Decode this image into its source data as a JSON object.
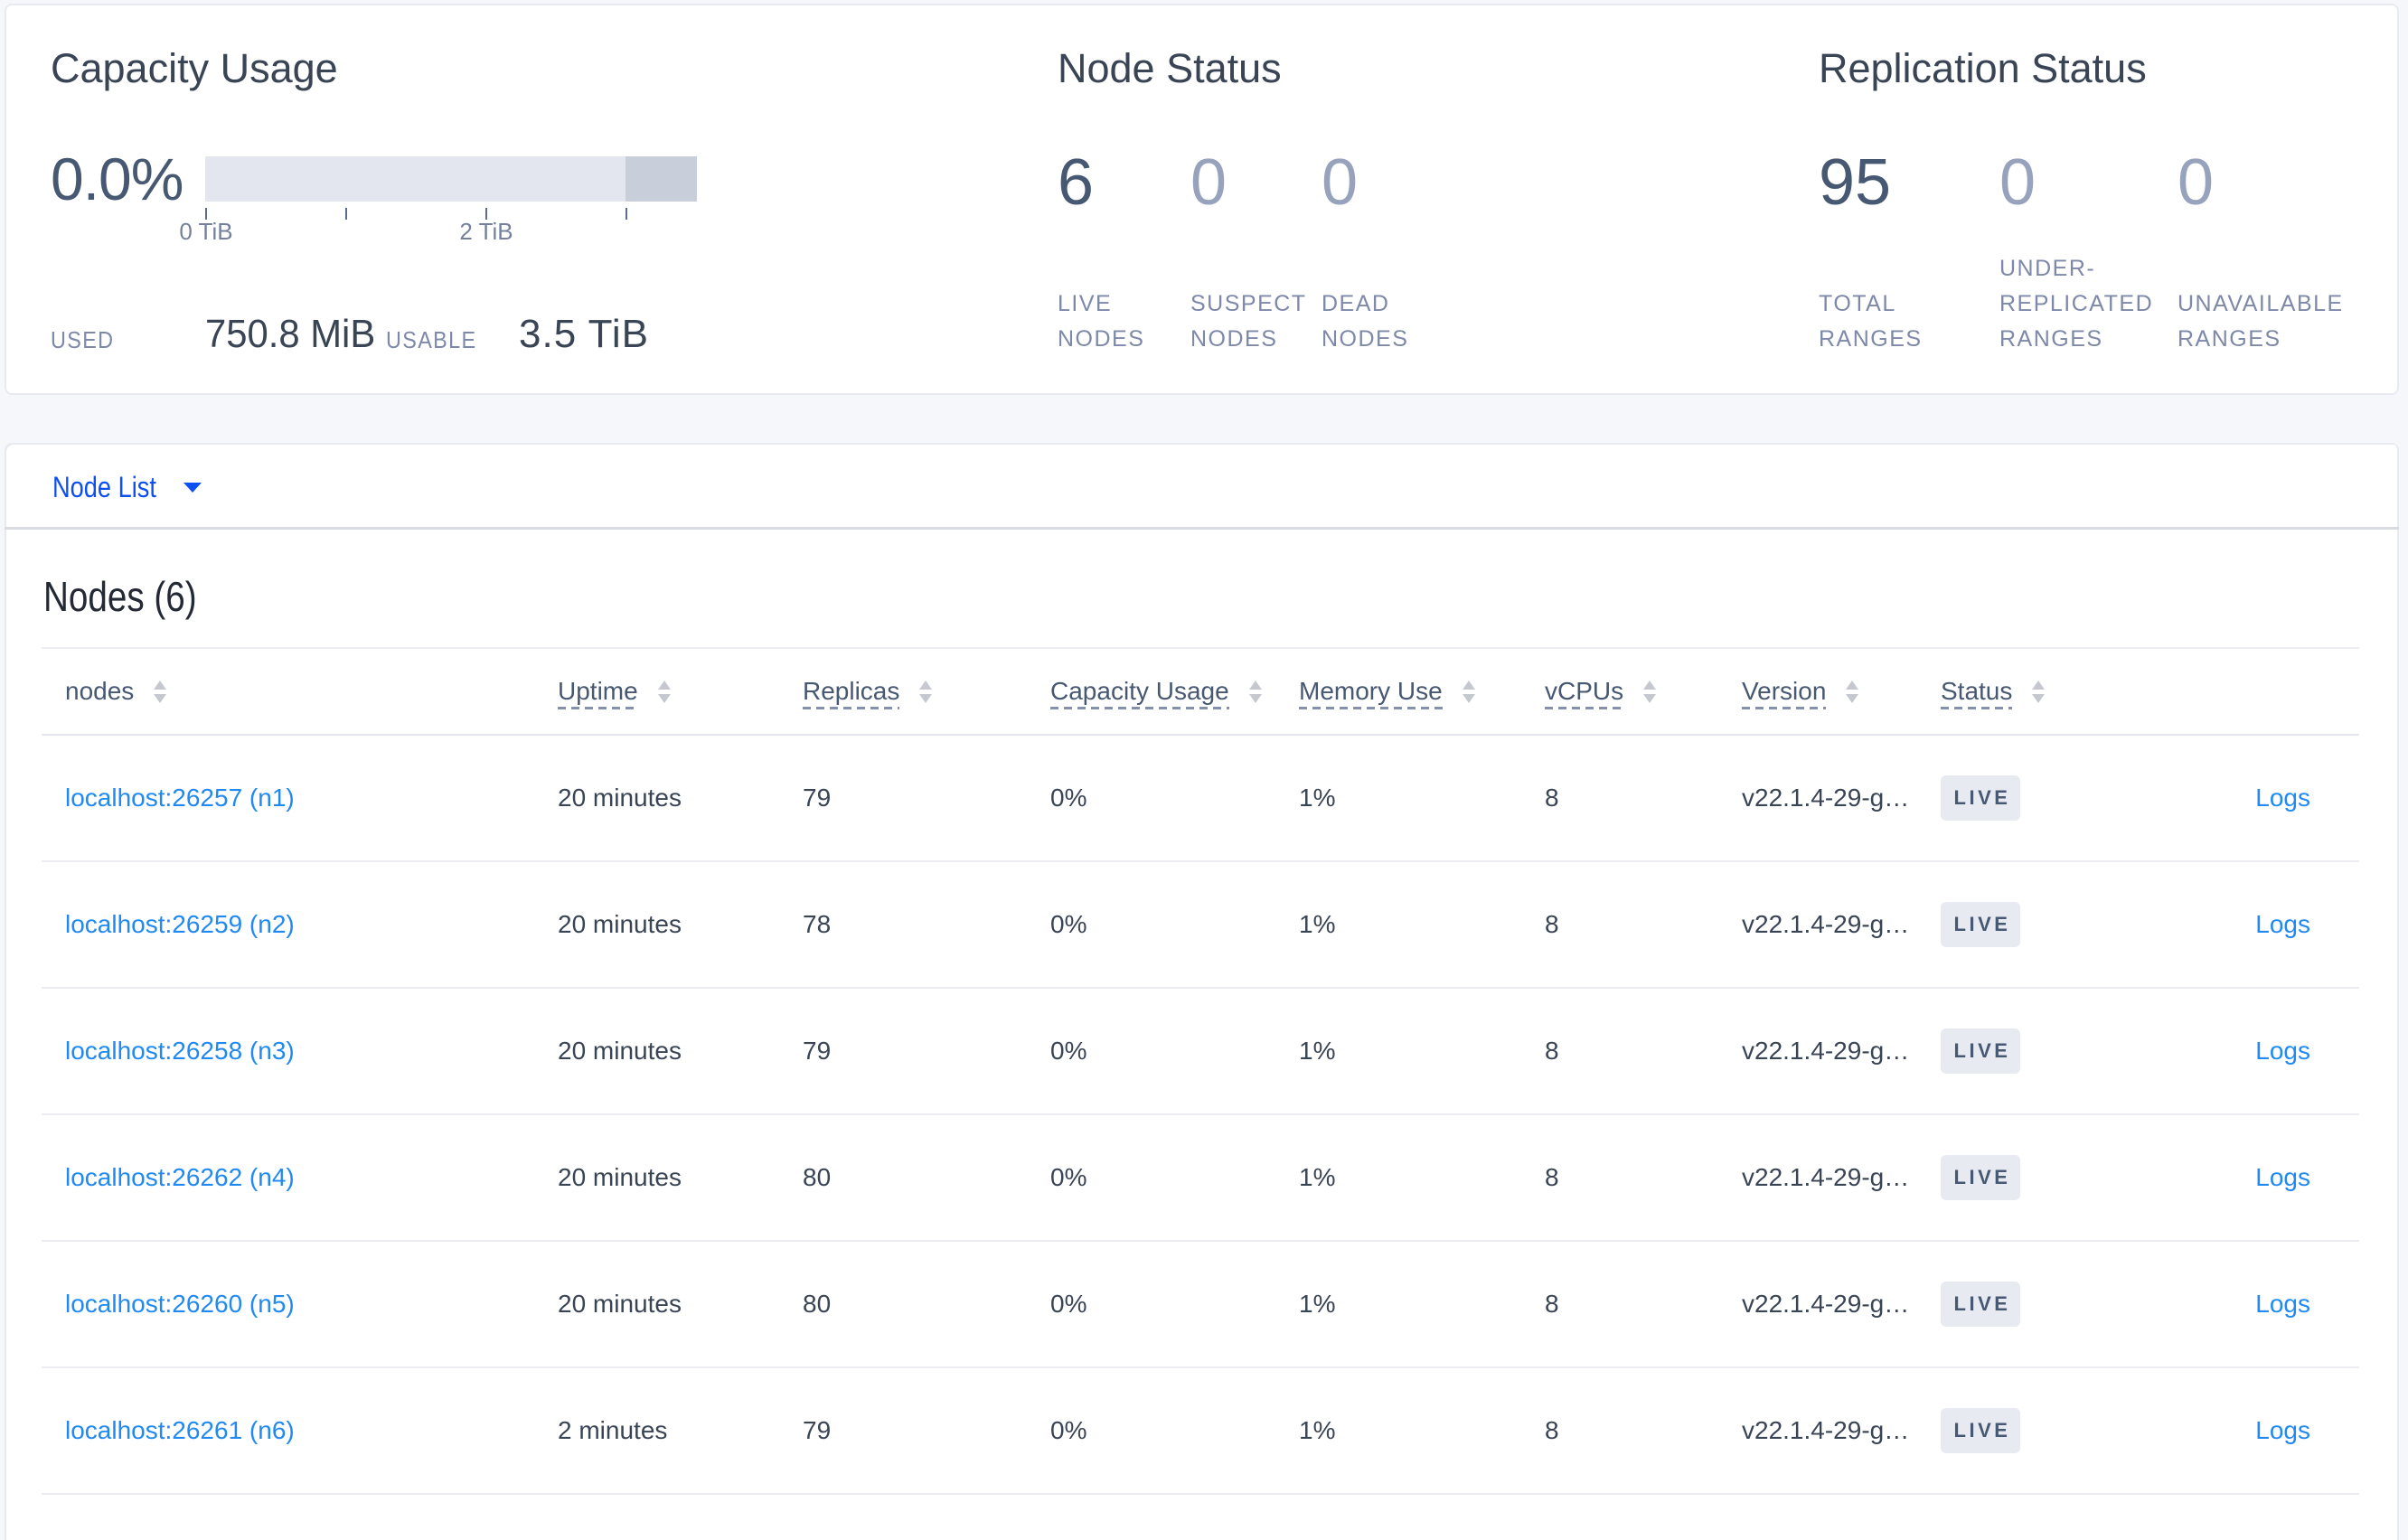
{
  "summary": {
    "capacity": {
      "title": "Capacity Usage",
      "percent": "0.0%",
      "used_label": "USED",
      "used_value": "750.8 MiB",
      "usable_label": "USABLE",
      "usable_value": "3.5 TiB",
      "tick_labels": [
        "0 TiB",
        "2 TiB"
      ]
    },
    "node_status": {
      "title": "Node Status",
      "stats": [
        {
          "value": "6",
          "label": [
            "LIVE",
            "NODES"
          ],
          "muted": false
        },
        {
          "value": "0",
          "label": [
            "SUSPECT",
            "NODES"
          ],
          "muted": true
        },
        {
          "value": "0",
          "label": [
            "DEAD",
            "NODES"
          ],
          "muted": true
        }
      ]
    },
    "replication_status": {
      "title": "Replication Status",
      "stats": [
        {
          "value": "95",
          "label": [
            "TOTAL",
            "RANGES"
          ],
          "muted": false
        },
        {
          "value": "0",
          "label": [
            "UNDER-",
            "REPLICATED",
            "RANGES"
          ],
          "muted": true
        },
        {
          "value": "0",
          "label": [
            "UNAVAILABLE",
            "RANGES"
          ],
          "muted": true
        }
      ]
    }
  },
  "node_list_bar": {
    "label": "Node List"
  },
  "nodes_table": {
    "heading": "Nodes (6)",
    "columns": [
      {
        "label": "nodes",
        "hint_underline": false
      },
      {
        "label": "Uptime",
        "hint_underline": true
      },
      {
        "label": "Replicas",
        "hint_underline": true
      },
      {
        "label": "Capacity Usage",
        "hint_underline": true
      },
      {
        "label": "Memory Use",
        "hint_underline": true
      },
      {
        "label": "vCPUs",
        "hint_underline": true
      },
      {
        "label": "Version",
        "hint_underline": true
      },
      {
        "label": "Status",
        "hint_underline": true
      }
    ],
    "rows": [
      {
        "node": "localhost:26257 (n1)",
        "uptime": "20 minutes",
        "replicas": "79",
        "capacity_usage": "0%",
        "memory_use": "1%",
        "vcpus": "8",
        "version": "v22.1.4-29-g…",
        "status": "LIVE",
        "logs": "Logs"
      },
      {
        "node": "localhost:26259 (n2)",
        "uptime": "20 minutes",
        "replicas": "78",
        "capacity_usage": "0%",
        "memory_use": "1%",
        "vcpus": "8",
        "version": "v22.1.4-29-g…",
        "status": "LIVE",
        "logs": "Logs"
      },
      {
        "node": "localhost:26258 (n3)",
        "uptime": "20 minutes",
        "replicas": "79",
        "capacity_usage": "0%",
        "memory_use": "1%",
        "vcpus": "8",
        "version": "v22.1.4-29-g…",
        "status": "LIVE",
        "logs": "Logs"
      },
      {
        "node": "localhost:26262 (n4)",
        "uptime": "20 minutes",
        "replicas": "80",
        "capacity_usage": "0%",
        "memory_use": "1%",
        "vcpus": "8",
        "version": "v22.1.4-29-g…",
        "status": "LIVE",
        "logs": "Logs"
      },
      {
        "node": "localhost:26260 (n5)",
        "uptime": "20 minutes",
        "replicas": "80",
        "capacity_usage": "0%",
        "memory_use": "1%",
        "vcpus": "8",
        "version": "v22.1.4-29-g…",
        "status": "LIVE",
        "logs": "Logs"
      },
      {
        "node": "localhost:26261 (n6)",
        "uptime": "2 minutes",
        "replicas": "79",
        "capacity_usage": "0%",
        "memory_use": "1%",
        "vcpus": "8",
        "version": "v22.1.4-29-g…",
        "status": "LIVE",
        "logs": "Logs"
      }
    ]
  },
  "chart_data": {
    "type": "bar",
    "title": "Capacity Usage",
    "series": [
      {
        "name": "used",
        "values": [
          0.0
        ]
      },
      {
        "name": "usable",
        "values": [
          3.5
        ]
      }
    ],
    "x": [
      "capacity"
    ],
    "xlabel": "",
    "ylabel": "TiB",
    "axis_ticks_tib": [
      0,
      1,
      2,
      3
    ],
    "axis_tick_labels": [
      "0 TiB",
      "",
      "2 TiB",
      ""
    ],
    "bar_total_tib": 3.5,
    "bar_reserved_from_tib": 3.0,
    "legend_position": "none",
    "grid": false
  }
}
